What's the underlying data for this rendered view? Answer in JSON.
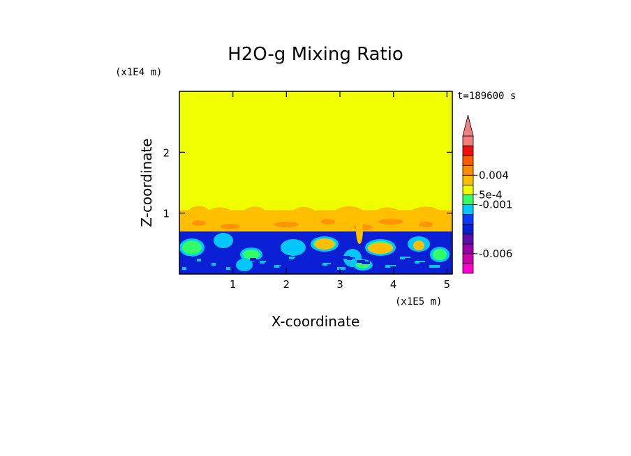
{
  "chart_data": {
    "type": "heatmap",
    "title": "H2O-g Mixing Ratio",
    "xlabel": "X-coordinate",
    "ylabel": "Z-coordinate",
    "x_unit": "(x1E5 m)",
    "y_unit": "(x1E4 m)",
    "time_label": "t=189600 s",
    "xlim": [
      0,
      5.1
    ],
    "ylim": [
      0,
      3
    ],
    "x_ticks": [
      1,
      2,
      3,
      4,
      5
    ],
    "y_ticks": [
      1,
      2
    ],
    "regions": [
      {
        "name": "upper",
        "z_range": [
          1.05,
          3.0
        ],
        "level_color": "#f0ff00"
      },
      {
        "name": "transition",
        "z_range": [
          0.7,
          1.05
        ],
        "level_color": "#ffbf00"
      },
      {
        "name": "lower",
        "z_range": [
          0.0,
          0.7
        ],
        "level_color": "#0a1fd4"
      }
    ],
    "colorbar": {
      "levels": [
        "#ff00cc",
        "#cc00aa",
        "#9900aa",
        "#5a0fa8",
        "#0a1fd4",
        "#0a3cff",
        "#00c8ff",
        "#33ff66",
        "#f0ff00",
        "#ffbf00",
        "#ff8c00",
        "#ff5a00",
        "#ee1010",
        "#f08080"
      ],
      "labels": [
        {
          "text": "0.004",
          "level": 10
        },
        {
          "text": "5e-4",
          "level": 8
        },
        {
          "text": "-0.001",
          "level": 7
        },
        {
          "text": "-0.006",
          "level": 2
        }
      ]
    }
  }
}
